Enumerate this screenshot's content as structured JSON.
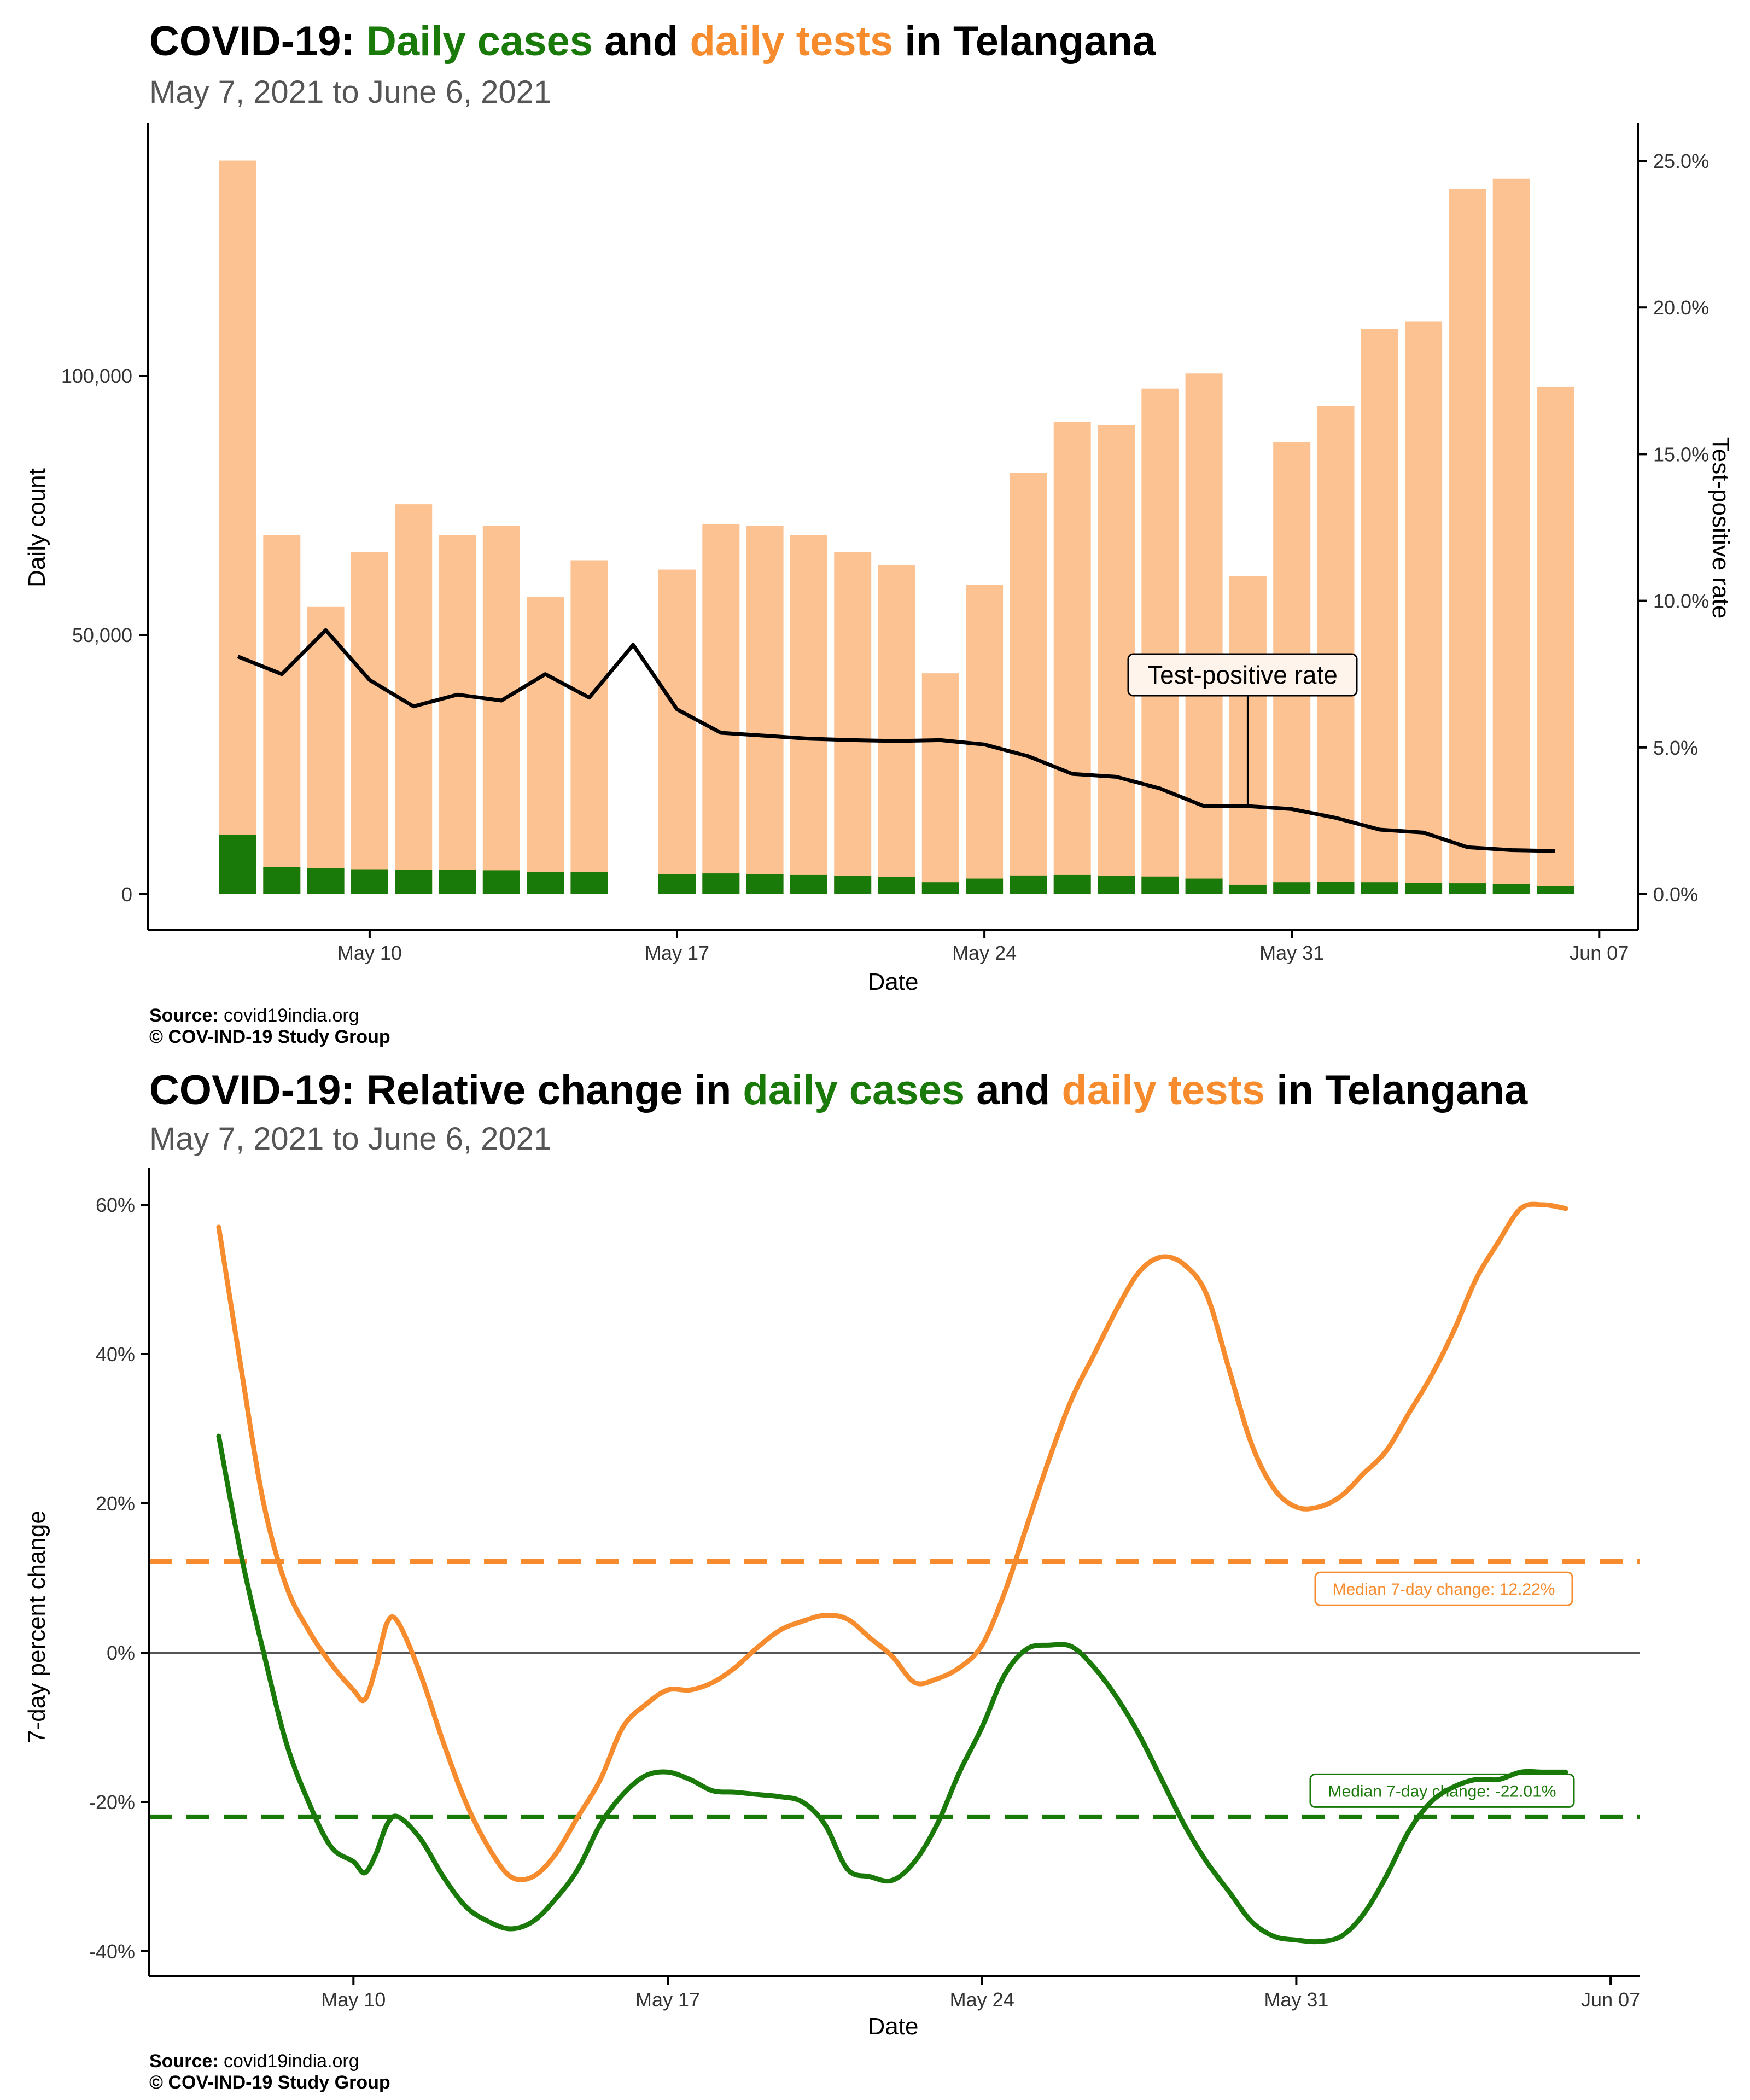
{
  "colors": {
    "cases": "#1a7a09",
    "tests": "#f78c2f",
    "tests_bar": "#fdc292",
    "tpr": "#000000",
    "zero_line": "#555555"
  },
  "top": {
    "title_parts": {
      "prefix": "COVID-19: ",
      "cases": "Daily cases",
      "mid": " and ",
      "tests": "daily tests",
      "suffix": " in Telangana"
    },
    "subtitle": "May  7, 2021 to June  6, 2021",
    "source_label": "Source:",
    "source_text": " covid19india.org",
    "copyright": "© COV-IND-19 Study Group"
  },
  "bottom": {
    "title_parts": {
      "prefix": "COVID-19: Relative change in ",
      "cases": "daily cases",
      "mid": " and ",
      "tests": "daily tests",
      "suffix": " in Telangana"
    },
    "subtitle": "May  7, 2021 to June  6, 2021",
    "source_label": "Source:",
    "source_text": " covid19india.org",
    "copyright": "© COV-IND-19 Study Group"
  },
  "chart_data": [
    {
      "type": "bar",
      "title": "COVID-19: Daily cases and daily tests in Telangana",
      "subtitle": "May  7, 2021 to June  6, 2021",
      "xlabel": "Date",
      "ylabel": "Daily count",
      "y2label": "Test-positive rate",
      "ylim": [
        0,
        150000
      ],
      "y2lim": [
        0,
        0.26
      ],
      "x_ticks": [
        "May 10",
        "May 17",
        "May 24",
        "May 31",
        "Jun 07"
      ],
      "y_ticks": [
        "0",
        "50,000",
        "100,000"
      ],
      "y2_ticks": [
        "0.0%",
        "5.0%",
        "10.0%",
        "15.0%",
        "20.0%",
        "25.0%"
      ],
      "x": [
        "May 7",
        "May 8",
        "May 9",
        "May 10",
        "May 11",
        "May 12",
        "May 13",
        "May 14",
        "May 15",
        "May 16",
        "May 17",
        "May 18",
        "May 19",
        "May 20",
        "May 21",
        "May 22",
        "May 23",
        "May 24",
        "May 25",
        "May 26",
        "May 27",
        "May 28",
        "May 29",
        "May 30",
        "May 31",
        "Jun 1",
        "Jun 2",
        "Jun 3",
        "Jun 4",
        "Jun 5",
        "Jun 6"
      ],
      "series": [
        {
          "name": "daily tests",
          "values": [
            141500,
            69200,
            55400,
            66000,
            75200,
            69200,
            71000,
            57300,
            64400,
            0,
            62600,
            71400,
            71000,
            69200,
            66000,
            63400,
            42600,
            59700,
            81300,
            91100,
            90400,
            97500,
            100500,
            61300,
            87200,
            94100,
            109000,
            110500,
            136000,
            138000,
            97900
          ]
        },
        {
          "name": "daily cases",
          "values": [
            11500,
            5200,
            5000,
            4800,
            4700,
            4700,
            4600,
            4300,
            4300,
            0,
            3900,
            4000,
            3800,
            3700,
            3500,
            3300,
            2300,
            3000,
            3600,
            3700,
            3500,
            3400,
            3000,
            1800,
            2300,
            2400,
            2300,
            2200,
            2100,
            2000,
            1500
          ]
        },
        {
          "name": "Test-positive rate",
          "values": [
            0.081,
            0.075,
            0.09,
            0.073,
            0.064,
            0.068,
            0.066,
            0.075,
            0.067,
            0.085,
            0.063,
            0.055,
            0.054,
            0.053,
            0.0525,
            0.0522,
            0.0525,
            0.051,
            0.047,
            0.041,
            0.04,
            0.036,
            0.03,
            0.03,
            0.029,
            0.026,
            0.022,
            0.021,
            0.016,
            0.015,
            0.0147
          ]
        }
      ],
      "annotations": [
        "Test-positive rate"
      ]
    },
    {
      "type": "line",
      "title": "COVID-19: Relative change in daily cases and daily tests in Telangana",
      "subtitle": "May  7, 2021 to June  6, 2021",
      "xlabel": "Date",
      "ylabel": "7-day percent change",
      "ylim": [
        -42,
        63
      ],
      "x_ticks": [
        "May 10",
        "May 17",
        "May 24",
        "May 31",
        "Jun 07"
      ],
      "y_ticks": [
        "-40%",
        "-20%",
        "0%",
        "20%",
        "40%",
        "60%"
      ],
      "x_days": [
        0,
        0.5,
        1,
        1.5,
        2,
        2.5,
        3,
        3.25,
        3.5,
        3.75,
        4,
        4.5,
        5,
        5.5,
        6,
        6.5,
        7,
        7.5,
        8,
        8.5,
        9,
        9.5,
        10,
        10.5,
        11,
        11.5,
        12,
        12.5,
        13,
        13.5,
        14,
        14.5,
        15,
        15.5,
        16,
        16.5,
        17,
        17.5,
        18,
        18.5,
        19,
        19.5,
        20,
        20.5,
        21,
        21.5,
        22,
        22.5,
        23,
        23.5,
        24,
        24.5,
        25,
        25.5,
        26,
        26.5,
        27,
        27.5,
        28,
        28.5,
        29,
        29.5,
        30
      ],
      "series": [
        {
          "name": "daily tests",
          "values": [
            57,
            38,
            20,
            9,
            3,
            -1.5,
            -5,
            -6.3,
            -2,
            4,
            4,
            -3,
            -12,
            -20,
            -26,
            -30,
            -30,
            -27,
            -22,
            -17,
            -10,
            -7,
            -5,
            -5,
            -4,
            -2,
            0.7,
            3,
            4.2,
            5,
            4.5,
            2,
            -0.5,
            -4,
            -3.5,
            -2,
            1,
            8,
            17,
            26,
            34,
            40,
            46,
            51,
            53,
            52,
            48,
            38,
            28,
            22,
            19.5,
            19.5,
            21,
            24,
            27,
            32,
            37,
            43,
            50,
            55,
            59.5,
            60,
            59.5
          ]
        },
        {
          "name": "daily cases",
          "values": [
            29,
            13,
            0,
            -12,
            -20,
            -26,
            -28,
            -29.5,
            -27,
            -23,
            -22,
            -25,
            -30,
            -34,
            -36,
            -37,
            -36,
            -33,
            -29,
            -23,
            -19,
            -16.5,
            -16,
            -17,
            -18.5,
            -18.7,
            -19,
            -19.3,
            -20,
            -23,
            -29,
            -30,
            -30.5,
            -28,
            -23,
            -16,
            -10,
            -3,
            0.5,
            1,
            0.8,
            -2,
            -6,
            -11,
            -17,
            -23,
            -28,
            -32,
            -36,
            -38,
            -38.5,
            -38.7,
            -38,
            -35,
            -30,
            -24,
            -20,
            -18,
            -17,
            -17,
            -16,
            -16,
            -16
          ]
        }
      ],
      "reference_lines": [
        {
          "label": "Median 7-day change: 12.22%",
          "value": 12.22,
          "color": "#f78c2f"
        },
        {
          "label": "Median 7-day change: -22.01%",
          "value": -22.01,
          "color": "#1a7a09"
        }
      ]
    }
  ]
}
